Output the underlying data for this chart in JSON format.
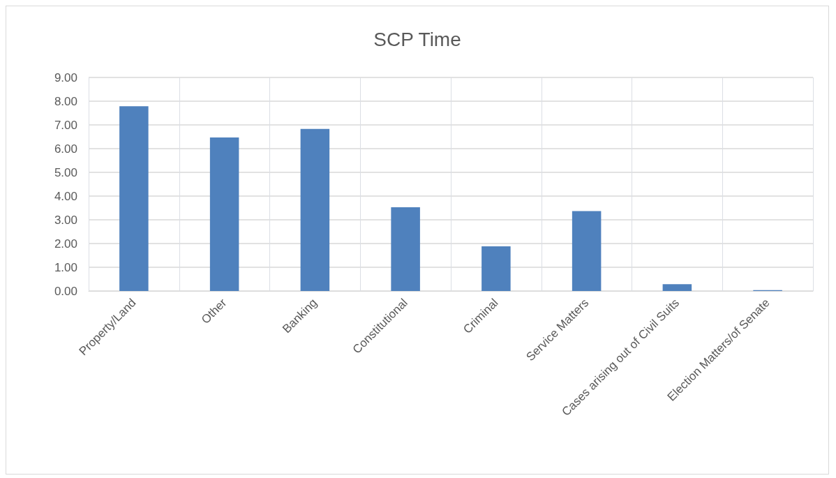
{
  "chart_data": {
    "type": "bar",
    "title": "SCP Time",
    "categories": [
      "Property/Land",
      "Other",
      "Banking",
      "Constitutional",
      "Criminal",
      "Service Matters",
      "Cases arising out of Civil Suits",
      "Election Matters/of Senate"
    ],
    "values": [
      7.79,
      6.47,
      6.83,
      3.53,
      1.88,
      3.37,
      0.29,
      0.04
    ],
    "color": "#4f81bd",
    "ylim": [
      0,
      9
    ],
    "yticks": [
      {
        "value": 0,
        "label": "0.00"
      },
      {
        "value": 1,
        "label": "1.00"
      },
      {
        "value": 2,
        "label": "2.00"
      },
      {
        "value": 3,
        "label": "3.00"
      },
      {
        "value": 4,
        "label": "4.00"
      },
      {
        "value": 5,
        "label": "5.00"
      },
      {
        "value": 6,
        "label": "6.00"
      },
      {
        "value": 7,
        "label": "7.00"
      },
      {
        "value": 8,
        "label": "8.00"
      },
      {
        "value": 9,
        "label": "9.00"
      }
    ],
    "grid": true
  }
}
